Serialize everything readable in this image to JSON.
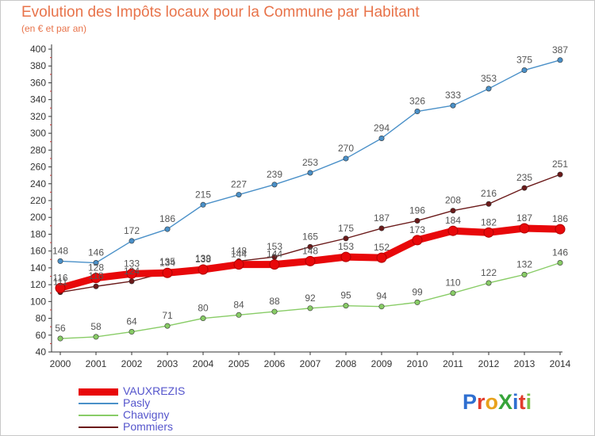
{
  "header": {
    "title": "Evolution des Impôts locaux pour la Commune par Habitant",
    "subtitle": "(en € et par an)"
  },
  "logo": {
    "text": "ProXiti",
    "letters": [
      {
        "ch": "P",
        "color": "#2f6fd0"
      },
      {
        "ch": "r",
        "color": "#e23c2c"
      },
      {
        "ch": "o",
        "color": "#e8a21c"
      },
      {
        "ch": "X",
        "color": "#36a43a"
      },
      {
        "ch": "i",
        "color": "#2f6fd0"
      },
      {
        "ch": "t",
        "color": "#e23c2c"
      },
      {
        "ch": "i",
        "color": "#7cc04a"
      }
    ]
  },
  "chart_data": {
    "type": "line",
    "title": "Evolution des Impôts locaux pour la Commune par Habitant",
    "subtitle": "(en € et par an)",
    "xlabel": "",
    "ylabel": "",
    "x": [
      "2000",
      "2001",
      "2002",
      "2003",
      "2004",
      "2005",
      "2006",
      "2007",
      "2008",
      "2009",
      "2010",
      "2011",
      "2012",
      "2013",
      "2014"
    ],
    "ylim": [
      40,
      400
    ],
    "yticks": [
      40,
      60,
      80,
      100,
      120,
      140,
      160,
      180,
      200,
      220,
      240,
      260,
      280,
      300,
      320,
      340,
      360,
      380,
      400
    ],
    "grid": false,
    "legend_position": "bottom-left",
    "series": [
      {
        "name": "VAUXREZIS",
        "color": "#e8080a",
        "values": [
          116,
          128,
          133,
          134,
          138,
          144,
          144,
          148,
          153,
          152,
          173,
          184,
          182,
          187,
          186
        ]
      },
      {
        "name": "Pasly",
        "color": "#4a90c8",
        "values": [
          148,
          146,
          172,
          186,
          215,
          227,
          239,
          253,
          270,
          294,
          326,
          333,
          353,
          375,
          387
        ]
      },
      {
        "name": "Chavigny",
        "color": "#88cc66",
        "values": [
          56,
          58,
          64,
          71,
          80,
          84,
          88,
          92,
          95,
          94,
          99,
          110,
          122,
          132,
          146
        ]
      },
      {
        "name": "Pommiers",
        "color": "#6b1a1a",
        "values": [
          111,
          118,
          124,
          135,
          139,
          148,
          153,
          165,
          175,
          187,
          196,
          208,
          216,
          235,
          251
        ]
      }
    ]
  }
}
